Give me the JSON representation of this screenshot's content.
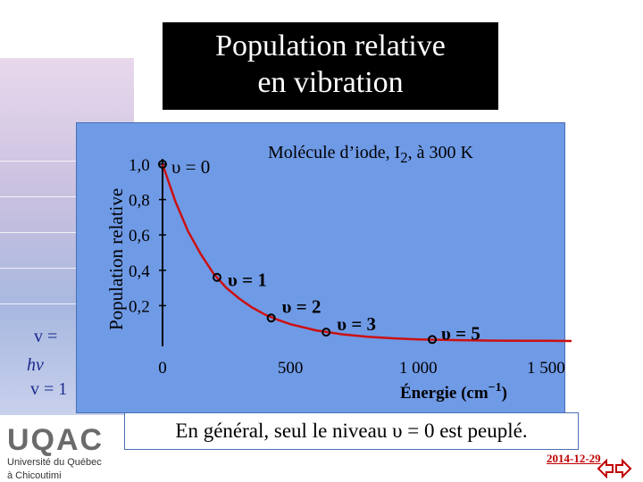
{
  "background": {
    "left_text_1": "v =",
    "left_text_2": "hν",
    "left_text_3": "v = 1"
  },
  "slide": {
    "title_line1": "Population relative",
    "title_line2": "en  vibration",
    "caption": "En général, seul le niveau υ = 0 est peuplé.",
    "date": "2014-12-29"
  },
  "logo": {
    "name": "UQAC",
    "line1": "Université du Québec",
    "line2": "à Chicoutimi"
  },
  "colors": {
    "panel": "#6f9ae6",
    "curve": "#cc1010",
    "title_bg": "#000000",
    "date": "#c00000"
  },
  "chart_data": {
    "type": "line",
    "title": "Molécule d’iode, I2, à 300 K",
    "subtitle_prefix": "Molécule d’iode, I",
    "subtitle_sub": "2",
    "subtitle_suffix": ", à 300 K",
    "ylabel": "Population relative",
    "xlabel": "Énergie (cm⁻¹)",
    "xlabel_main": "Énergie (cm",
    "xlabel_sup": "−1",
    "xlabel_end": ")",
    "x_ticks": [
      {
        "value": 0,
        "label": "0"
      },
      {
        "value": 500,
        "label": "500"
      },
      {
        "value": 1000,
        "label": "1 000"
      },
      {
        "value": 1500,
        "label": "1 500"
      }
    ],
    "y_ticks": [
      {
        "value": 1.0,
        "label": "1,0"
      },
      {
        "value": 0.8,
        "label": "0,8"
      },
      {
        "value": 0.6,
        "label": "0,6"
      },
      {
        "value": 0.4,
        "label": "0,4"
      },
      {
        "value": 0.2,
        "label": "0,2"
      }
    ],
    "xlim": [
      0,
      1600
    ],
    "ylim": [
      0,
      1.0
    ],
    "series": [
      {
        "curve": [
          {
            "x": 0,
            "y": 1.0
          },
          {
            "x": 50,
            "y": 0.79
          },
          {
            "x": 100,
            "y": 0.62
          },
          {
            "x": 150,
            "y": 0.49
          },
          {
            "x": 200,
            "y": 0.38
          },
          {
            "x": 250,
            "y": 0.3
          },
          {
            "x": 300,
            "y": 0.24
          },
          {
            "x": 350,
            "y": 0.19
          },
          {
            "x": 400,
            "y": 0.15
          },
          {
            "x": 450,
            "y": 0.12
          },
          {
            "x": 500,
            "y": 0.095
          },
          {
            "x": 600,
            "y": 0.06
          },
          {
            "x": 700,
            "y": 0.038
          },
          {
            "x": 800,
            "y": 0.024
          },
          {
            "x": 900,
            "y": 0.015
          },
          {
            "x": 1000,
            "y": 0.009
          },
          {
            "x": 1100,
            "y": 0.006
          },
          {
            "x": 1200,
            "y": 0.004
          },
          {
            "x": 1300,
            "y": 0.002
          },
          {
            "x": 1400,
            "y": 0.001
          },
          {
            "x": 1500,
            "y": 0.001
          },
          {
            "x": 1600,
            "y": 0.0
          }
        ]
      }
    ],
    "levels": [
      {
        "label": "υ = 0",
        "x": 0,
        "y": 1.0
      },
      {
        "label": "υ = 1",
        "x": 213,
        "y": 0.36
      },
      {
        "label": "υ = 2",
        "x": 425,
        "y": 0.13
      },
      {
        "label": "υ = 3",
        "x": 640,
        "y": 0.05
      },
      {
        "label": "υ = 5",
        "x": 1055,
        "y": 0.008
      }
    ]
  }
}
